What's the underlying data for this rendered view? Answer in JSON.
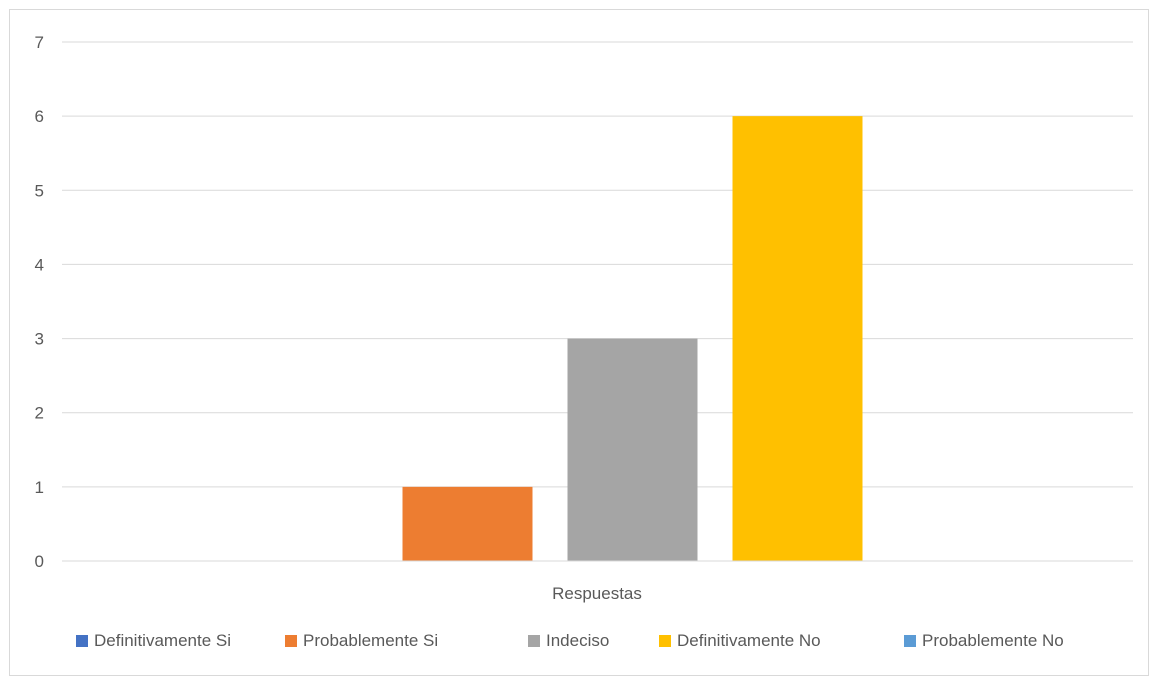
{
  "chart_data": {
    "type": "bar",
    "title": "",
    "xlabel": "",
    "ylabel": "",
    "categories": [
      "Respuestas"
    ],
    "ylim": [
      0,
      7
    ],
    "yticks": [
      0,
      1,
      2,
      3,
      4,
      5,
      6,
      7
    ],
    "grid": true,
    "legend_position": "bottom",
    "series": [
      {
        "name": "Definitivamente Si",
        "values": [
          0
        ],
        "color": "#4472C4"
      },
      {
        "name": "Probablemente Si",
        "values": [
          1
        ],
        "color": "#ED7D31"
      },
      {
        "name": "Indeciso",
        "values": [
          3
        ],
        "color": "#A5A5A5"
      },
      {
        "name": "Definitivamente No",
        "values": [
          6
        ],
        "color": "#FFC000"
      },
      {
        "name": "Probablemente No",
        "values": [
          0
        ],
        "color": "#5B9BD5"
      }
    ]
  }
}
